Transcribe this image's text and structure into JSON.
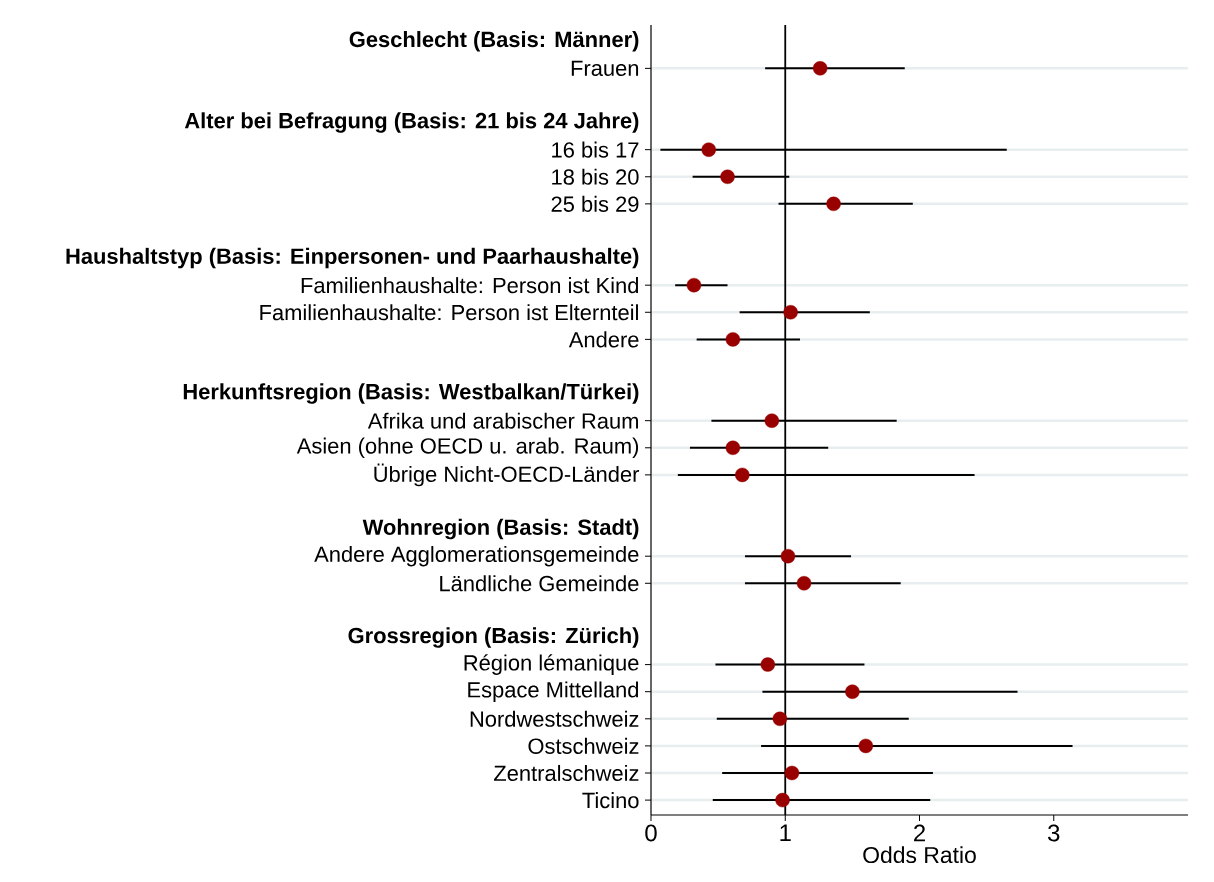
{
  "chart_data": {
    "type": "scatter",
    "orientation": "horizontal",
    "xlabel": "Odds Ratio",
    "categories": [
      "Geschlecht (Basis: Männer)",
      "Frauen",
      null,
      "Alter bei Befragung (Basis: 21 bis 24 Jahre)",
      "16 bis 17",
      "18 bis 20",
      "25 bis 29",
      null,
      "Haushaltstyp (Basis: Einpersonen- und Paarhaushalte)",
      "Familienhaushalte: Person ist Kind",
      "Familienhaushalte: Person ist Elternteil",
      "Andere",
      null,
      "Herkunftsregion (Basis: Westbalkan/Türkei)",
      "Afrika und arabischer Raum",
      "Asien (ohne OECD u. arab. Raum)",
      "Übrige Nicht-OECD-Länder",
      null,
      "Wohnregion (Basis: Stadt)",
      "Andere Agglomerationsgemeinde",
      "Ländliche Gemeinde",
      null,
      "Grossregion (Basis: Zürich)",
      "Région lémanique",
      "Espace Mittelland",
      "Nordwestschweiz",
      "Ostschweiz",
      "Zentralschweiz",
      "Ticino"
    ],
    "values": [
      null,
      1.26,
      null,
      null,
      0.43,
      0.57,
      1.36,
      null,
      null,
      0.32,
      1.04,
      0.61,
      null,
      null,
      0.9,
      0.61,
      0.68,
      null,
      null,
      1.02,
      1.14,
      null,
      null,
      0.87,
      1.5,
      0.96,
      1.6,
      1.05,
      0.98
    ],
    "errors": [
      null,
      [
        0.85,
        1.89
      ],
      null,
      null,
      [
        0.07,
        2.65
      ],
      [
        0.31,
        1.03
      ],
      [
        0.95,
        1.95
      ],
      null,
      null,
      [
        0.18,
        0.57
      ],
      [
        0.66,
        1.63
      ],
      [
        0.34,
        1.11
      ],
      null,
      null,
      [
        0.45,
        1.83
      ],
      [
        0.29,
        1.32
      ],
      [
        0.2,
        2.41
      ],
      null,
      null,
      [
        0.7,
        1.49
      ],
      [
        0.7,
        1.86
      ],
      null,
      null,
      [
        0.48,
        1.59
      ],
      [
        0.83,
        2.73
      ],
      [
        0.49,
        1.92
      ],
      [
        0.82,
        3.14
      ],
      [
        0.53,
        2.1
      ],
      [
        0.46,
        2.08
      ]
    ],
    "color": "#990000",
    "grid": "y",
    "xlim": [
      0,
      4
    ],
    "xticks": [
      0,
      1,
      2,
      3
    ],
    "ref_lines": [
      {
        "axis": "x",
        "value": 1,
        "color": "#000000"
      }
    ]
  }
}
